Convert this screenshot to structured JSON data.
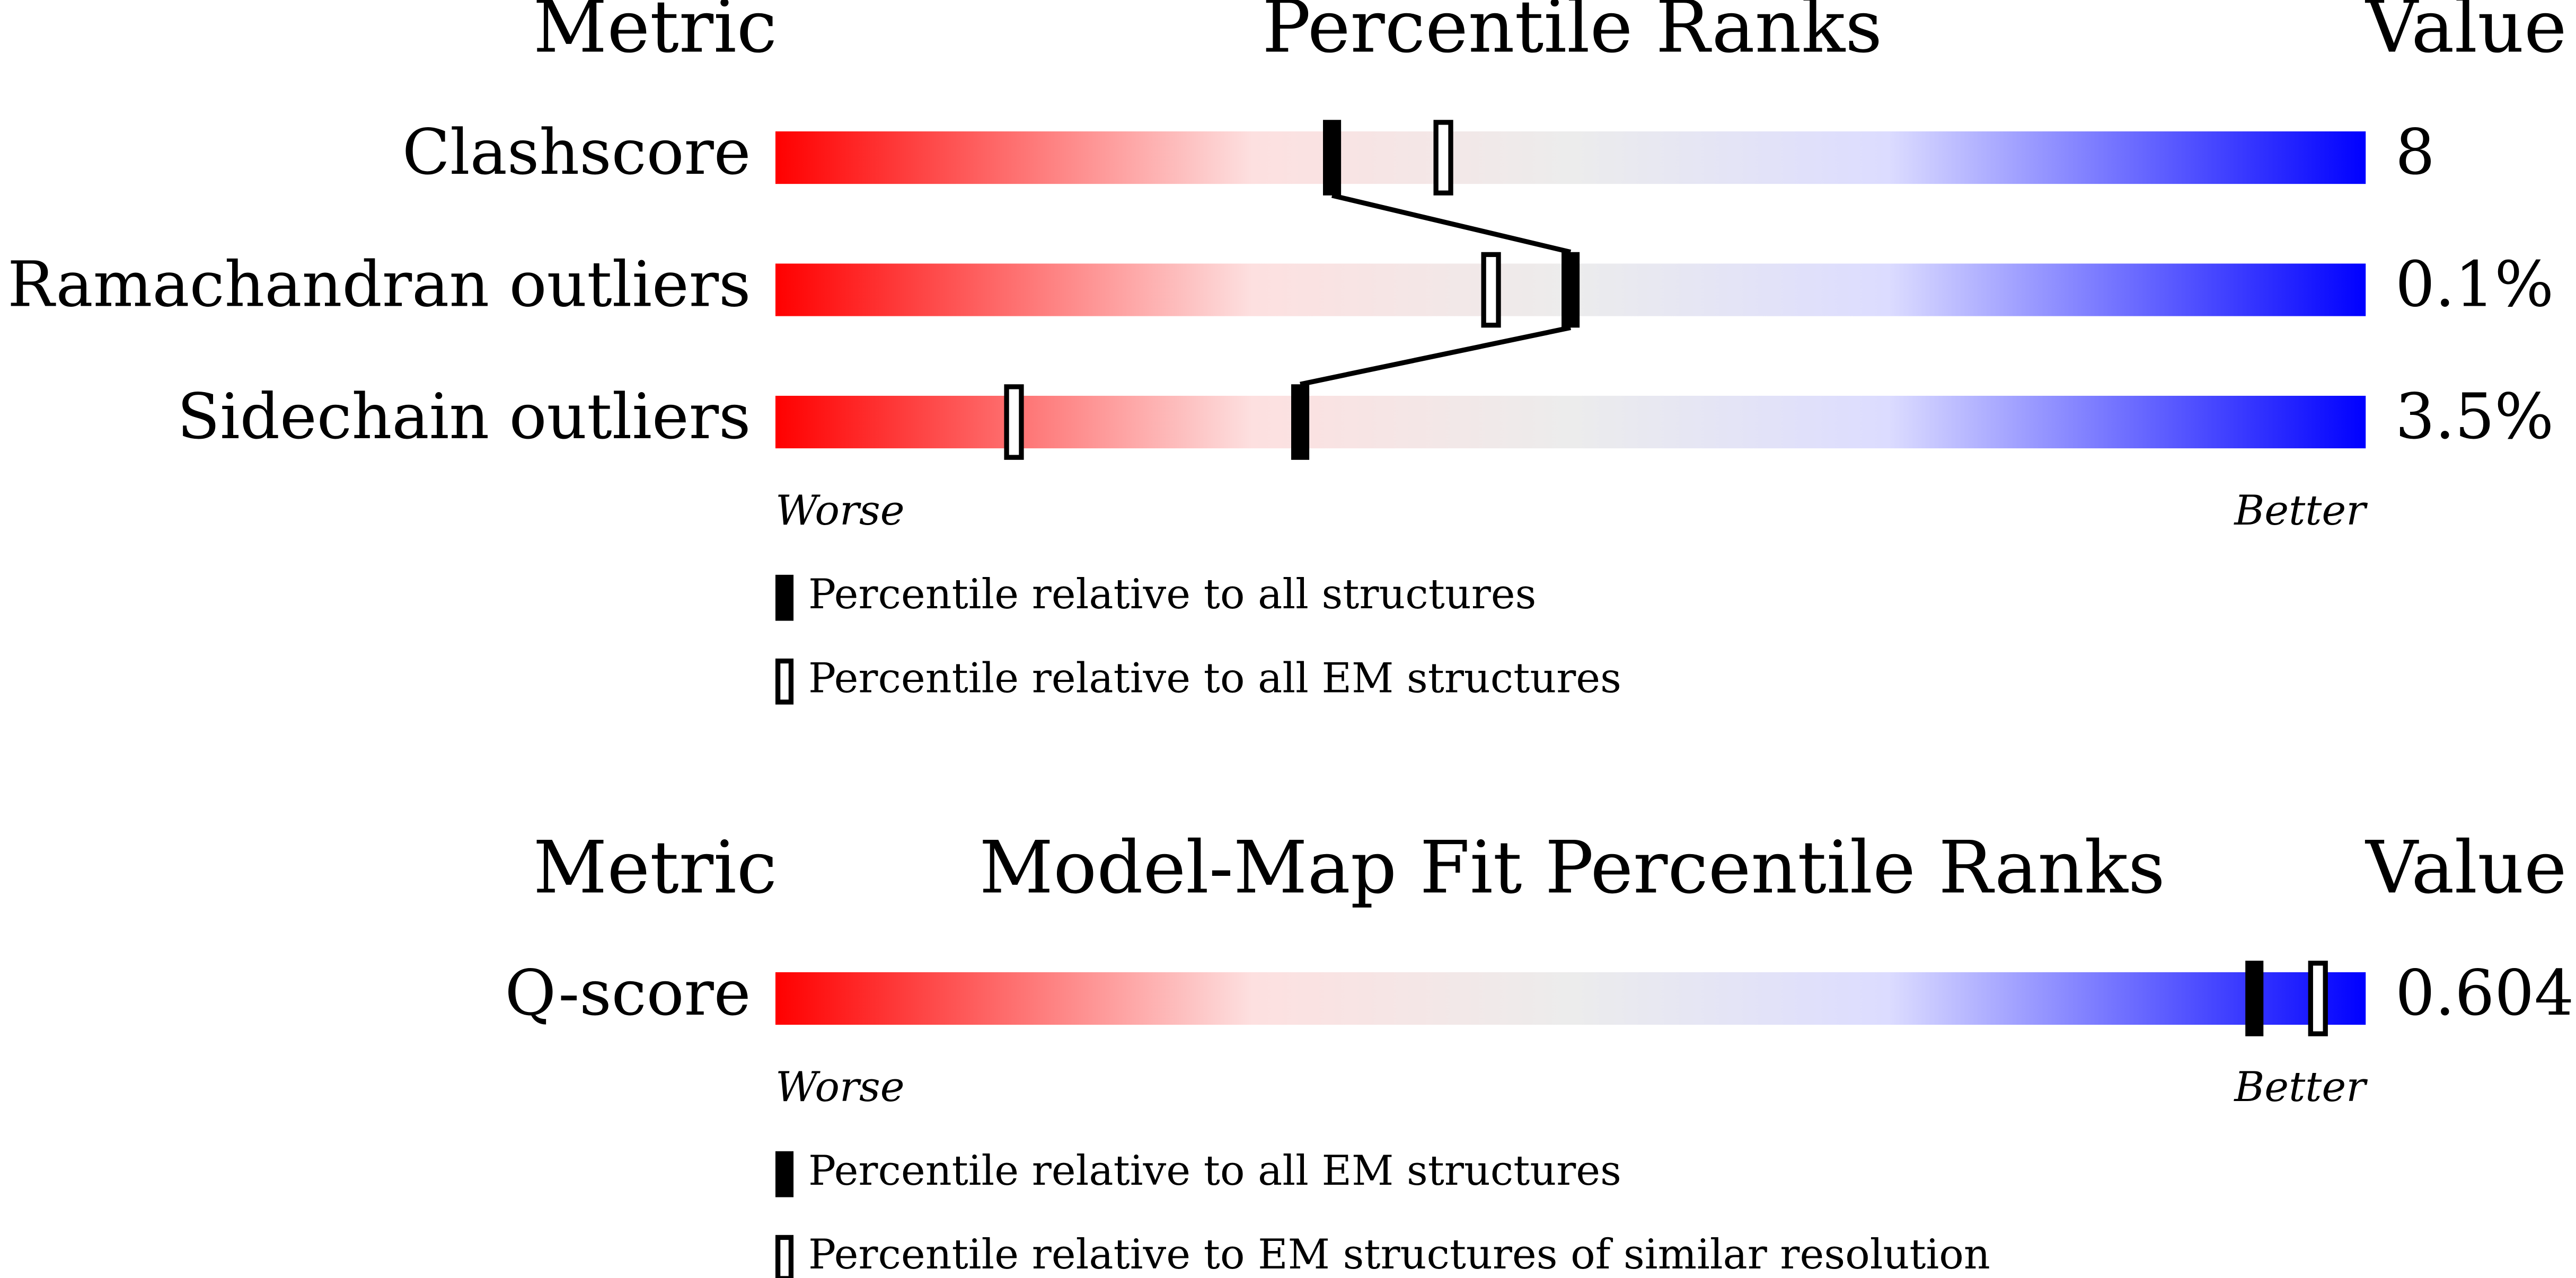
{
  "chart_data": [
    {
      "type": "percentile-slider",
      "metric_header": "Metric",
      "title": "Percentile Ranks",
      "value_header": "Value",
      "categories": [
        "Clashscore",
        "Ramachandran outliers",
        "Sidechain outliers"
      ],
      "metric_values": [
        "8",
        "0.1%",
        "3.5%"
      ],
      "xlim": [
        0,
        100
      ],
      "worse_label": "Worse",
      "better_label": "Better",
      "series": [
        {
          "name": "Percentile relative to all structures",
          "style": "filled",
          "connect": true,
          "color": "#000000",
          "values": [
            35,
            50,
            33
          ]
        },
        {
          "name": "Percentile relative to all EM structures",
          "style": "open",
          "connect": false,
          "color": "#000000",
          "values": [
            42,
            45,
            15
          ]
        }
      ]
    },
    {
      "type": "percentile-slider",
      "metric_header": "Metric",
      "title": "Model-Map Fit Percentile Ranks",
      "value_header": "Value",
      "categories": [
        "Q-score"
      ],
      "metric_values": [
        "0.604"
      ],
      "xlim": [
        0,
        100
      ],
      "worse_label": "Worse",
      "better_label": "Better",
      "series": [
        {
          "name": "Percentile relative to all EM structures",
          "style": "filled",
          "connect": true,
          "color": "#000000",
          "values": [
            93
          ]
        },
        {
          "name": "Percentile relative to EM structures of similar resolution",
          "style": "open",
          "connect": false,
          "color": "#000000",
          "values": [
            97
          ]
        }
      ]
    }
  ]
}
